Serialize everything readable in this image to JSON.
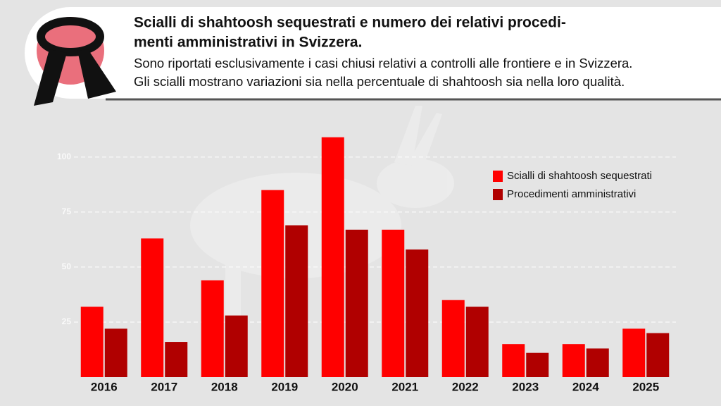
{
  "chart_data": {
    "type": "bar",
    "title": [
      "Scialli di shahtoosh sequestrati e numero dei relativi procedi-",
      "menti amministrativi in Svizzera."
    ],
    "subtitle": [
      "Sono riportati esclusivamente i casi chiusi relativi a controlli alle frontiere e in Svizzera.",
      "Gli scialli mostrano variazioni sia nella percentuale di shahtoosh sia nella loro qualità."
    ],
    "categories": [
      "2016",
      "2017",
      "2018",
      "2019",
      "2020",
      "2021",
      "2022",
      "2023",
      "2024",
      "2025"
    ],
    "series": [
      {
        "name": "Scialli di shahtoosh sequestrati",
        "color": "#ff0000",
        "values": [
          32,
          63,
          44,
          85,
          109,
          67,
          35,
          15,
          15,
          22
        ]
      },
      {
        "name": "Procedimenti amministrativi",
        "color": "#b00000",
        "values": [
          22,
          16,
          28,
          69,
          67,
          58,
          32,
          11,
          13,
          20
        ]
      }
    ],
    "ylim": [
      0,
      115
    ],
    "yticks": [
      25,
      50,
      75,
      100
    ],
    "grid": true
  }
}
